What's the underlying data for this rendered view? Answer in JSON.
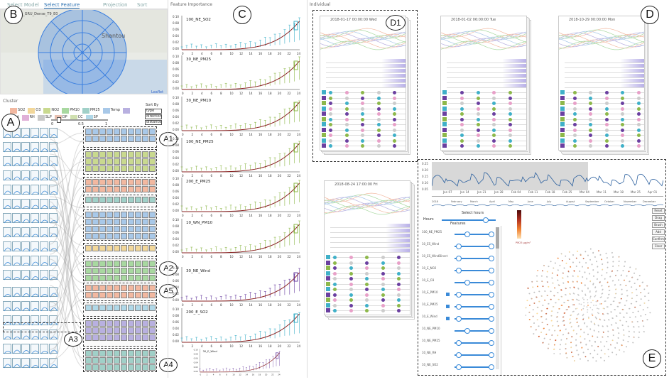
{
  "tabs": {
    "model": "Select Model",
    "feature": "Select Feature",
    "projection": "Projection",
    "sort": "Sort"
  },
  "map": {
    "model_name": "0_A_GRU_Dense_T9_E0",
    "city": "Shantou",
    "attribution": "Leaflet"
  },
  "cluster": {
    "title": "Cluster",
    "legend": [
      {
        "label": "SO2",
        "color": "#f2b8a0"
      },
      {
        "label": "O3",
        "color": "#f2d79a"
      },
      {
        "label": "NO2",
        "color": "#c9d98f"
      },
      {
        "label": "PM10",
        "color": "#a8d8a0"
      },
      {
        "label": "PM25",
        "color": "#a0d0c8"
      },
      {
        "label": "Temp",
        "color": "#a8c8e8"
      },
      {
        "label": "Wind",
        "color": "#b8b0e0"
      },
      {
        "label": "RH",
        "color": "#e0b0d8"
      },
      {
        "label": "SLP",
        "color": "#c8c8c8"
      },
      {
        "label": "DP",
        "color": "#e8c0b0"
      },
      {
        "label": "CC",
        "color": "#d0e0b0"
      },
      {
        "label": "SP",
        "color": "#b0d8e8"
      }
    ],
    "sort_by": "Sort By",
    "sort_options": [
      "type",
      "direction",
      "distance"
    ],
    "scale": {
      "min": "0",
      "mid": "0.5",
      "max": "1"
    }
  },
  "importance": {
    "title": "Feature Importance",
    "charts": [
      {
        "label": "100_NE_SO2",
        "color": "#3fb0c8"
      },
      {
        "label": "30_NE_PM25",
        "color": "#8db84a"
      },
      {
        "label": "30_NE_PM10",
        "color": "#8db84a"
      },
      {
        "label": "100_NE_PM25",
        "color": "#8db84a"
      },
      {
        "label": "200_E_PM25",
        "color": "#8db84a"
      },
      {
        "label": "10_WN_PM10",
        "color": "#8db84a"
      },
      {
        "label": "30_NE_Wind",
        "color": "#6a3fa0"
      },
      {
        "label": "200_E_SO2",
        "color": "#3fb0c8"
      },
      {
        "label": "30_E_Wind",
        "color": "#6a3fa0"
      }
    ],
    "yticks": [
      "0.10",
      "0.08",
      "0.06",
      "0.04",
      "0.02",
      "0.00"
    ],
    "xticks": [
      "0",
      "2",
      "4",
      "6",
      "8",
      "10",
      "12",
      "14",
      "16",
      "18",
      "20",
      "22",
      "24"
    ]
  },
  "individual": {
    "title": "Individual",
    "cards": [
      {
        "time": "2018-01-17 00:00:00 Wed"
      },
      {
        "time": "2018-01-02 06:00:00 Tue"
      },
      {
        "time": "2018-10-29 00:00:00 Mon"
      },
      {
        "time": "2018-08-24 17:00:00 Fri"
      }
    ]
  },
  "timeline": {
    "yticks": [
      "0.25",
      "0.20",
      "0.15",
      "0.10",
      "0.05"
    ],
    "xticks": [
      "Jan 07",
      "Jan 14",
      "Jan 21",
      "Jan 28",
      "Feb 04",
      "Feb 11",
      "Feb 18",
      "Feb 25",
      "Mar 04",
      "Mar 11",
      "Mar 18",
      "Mar 25",
      "Apr 01"
    ],
    "overview_ticks": [
      "2018",
      "February",
      "March",
      "April",
      "May",
      "June",
      "July",
      "August",
      "September",
      "October",
      "November",
      "December"
    ]
  },
  "controls": {
    "select_hours": "Select hours",
    "hours": "Hours",
    "features": "Features",
    "colorbar_unit": "PM25 μg/m³",
    "buttons": [
      "Reset",
      "Drag",
      "Brush",
      "Add",
      "Confirm",
      "Clear"
    ],
    "feature_rows": [
      "100_NE_PM25",
      "10_ES_Wind",
      "10_ES_WindDirect",
      "10_E_NO2",
      "10_E_O3",
      "10_E_PM10",
      "10_E_PM25",
      "10_E_Wind",
      "10_NE_PM10",
      "10_NE_PM25",
      "10_NE_RH",
      "10_NE_SO2"
    ],
    "checked": [
      false,
      false,
      false,
      false,
      false,
      true,
      true,
      true,
      false,
      false,
      false,
      false
    ]
  },
  "labels": {
    "A": "A",
    "B": "B",
    "C": "C",
    "D": "D",
    "E": "E",
    "A1": "A1",
    "A2": "A2",
    "A3": "A3",
    "A4": "A4",
    "A5": "A5",
    "D1": "D1"
  }
}
